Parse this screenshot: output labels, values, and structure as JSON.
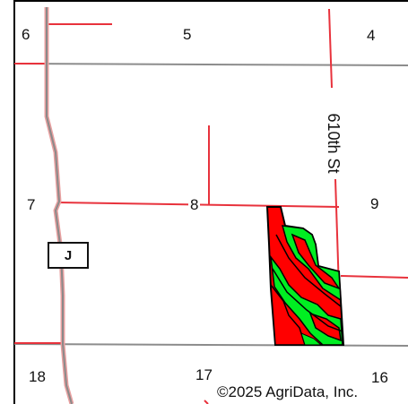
{
  "map": {
    "sections": {
      "s6": "6",
      "s5": "5",
      "s4": "4",
      "s7": "7",
      "s8": "8",
      "s9": "9",
      "s18": "18",
      "s17": "17",
      "s16": "16"
    },
    "road_label": "610th St",
    "highway_shield": "J",
    "copyright": "©2025 AgriData, Inc."
  },
  "colors": {
    "road": "#e8323c",
    "section_line": "#8c8c8c",
    "highway": "#c9a7a7",
    "zone_high": "#ff0000",
    "zone_mid": "#00ee22",
    "zone_outline": "#000000"
  }
}
